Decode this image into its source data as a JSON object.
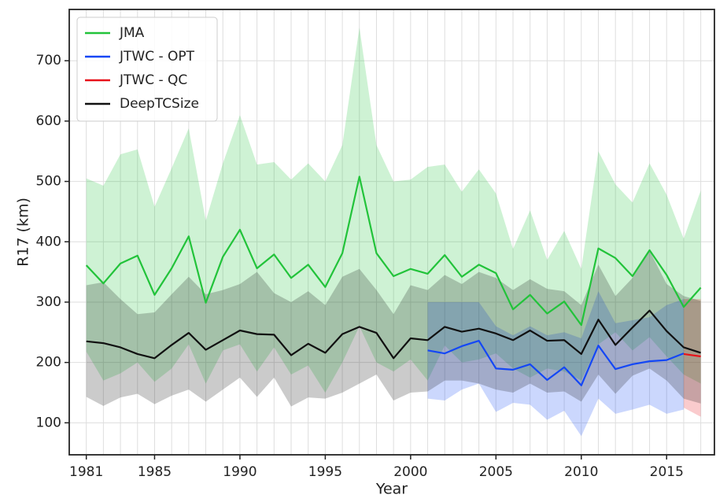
{
  "chart_data": {
    "type": "line",
    "x_label": "Year",
    "y_label": "R17 (km)",
    "x": [
      1981,
      1982,
      1983,
      1984,
      1985,
      1986,
      1987,
      1988,
      1989,
      1990,
      1991,
      1992,
      1993,
      1994,
      1995,
      1996,
      1997,
      1998,
      1999,
      2000,
      2001,
      2002,
      2003,
      2004,
      2005,
      2006,
      2007,
      2008,
      2009,
      2010,
      2011,
      2012,
      2013,
      2014,
      2015,
      2016,
      2017
    ],
    "xlim": [
      1980,
      2017.8
    ],
    "xticks": [
      1981,
      1985,
      1990,
      1995,
      2000,
      2005,
      2010,
      2015
    ],
    "ylim": [
      47,
      785
    ],
    "yticks": [
      100,
      200,
      300,
      400,
      500,
      600,
      700
    ],
    "grid": true,
    "legend": "upper left",
    "series": [
      {
        "name": "JMA",
        "color": "#22c33a",
        "values": [
          361,
          331,
          364,
          377,
          312,
          356,
          409,
          299,
          375,
          420,
          356,
          379,
          340,
          362,
          325,
          381,
          508,
          381,
          343,
          355,
          347,
          378,
          342,
          362,
          348,
          288,
          312,
          281,
          301,
          262,
          389,
          373,
          343,
          386,
          345,
          292,
          324
        ],
        "upper": [
          505,
          493,
          545,
          553,
          458,
          522,
          588,
          435,
          530,
          610,
          528,
          532,
          503,
          530,
          500,
          560,
          755,
          560,
          500,
          503,
          524,
          528,
          483,
          520,
          480,
          388,
          452,
          370,
          418,
          355,
          550,
          495,
          465,
          530,
          478,
          405,
          485
        ],
        "lower": [
          218,
          170,
          182,
          200,
          168,
          190,
          230,
          165,
          220,
          230,
          185,
          225,
          180,
          195,
          150,
          200,
          260,
          200,
          185,
          205,
          170,
          228,
          200,
          205,
          215,
          190,
          175,
          190,
          185,
          170,
          230,
          250,
          220,
          242,
          210,
          180,
          165
        ]
      },
      {
        "name": "JTWC - OPT",
        "color": "#1447f5",
        "values": [
          null,
          null,
          null,
          null,
          null,
          null,
          null,
          null,
          null,
          null,
          null,
          null,
          null,
          null,
          null,
          null,
          null,
          null,
          null,
          null,
          220,
          215,
          227,
          236,
          190,
          188,
          197,
          171,
          192,
          162,
          228,
          189,
          197,
          202,
          204,
          215,
          null
        ],
        "upper": [
          null,
          null,
          null,
          null,
          null,
          null,
          null,
          null,
          null,
          null,
          null,
          null,
          null,
          null,
          null,
          null,
          null,
          null,
          null,
          null,
          300,
          300,
          300,
          300,
          260,
          245,
          260,
          245,
          250,
          240,
          318,
          265,
          270,
          275,
          295,
          305,
          null
        ],
        "lower": [
          null,
          null,
          null,
          null,
          null,
          null,
          null,
          null,
          null,
          null,
          null,
          null,
          null,
          null,
          null,
          null,
          null,
          null,
          null,
          null,
          140,
          137,
          155,
          165,
          118,
          133,
          130,
          105,
          120,
          78,
          140,
          115,
          122,
          130,
          115,
          122,
          null
        ]
      },
      {
        "name": "JTWC - QC",
        "color": "#e8121a",
        "values": [
          null,
          null,
          null,
          null,
          null,
          null,
          null,
          null,
          null,
          null,
          null,
          null,
          null,
          null,
          null,
          null,
          null,
          null,
          null,
          null,
          null,
          null,
          null,
          null,
          null,
          null,
          null,
          null,
          null,
          null,
          null,
          null,
          null,
          null,
          null,
          214,
          210
        ],
        "upper": [
          null,
          null,
          null,
          null,
          null,
          null,
          null,
          null,
          null,
          null,
          null,
          null,
          null,
          null,
          null,
          null,
          null,
          null,
          null,
          null,
          null,
          null,
          null,
          null,
          null,
          null,
          null,
          null,
          null,
          null,
          null,
          null,
          null,
          null,
          null,
          305,
          305
        ],
        "lower": [
          null,
          null,
          null,
          null,
          null,
          null,
          null,
          null,
          null,
          null,
          null,
          null,
          null,
          null,
          null,
          null,
          null,
          null,
          null,
          null,
          null,
          null,
          null,
          null,
          null,
          null,
          null,
          null,
          null,
          null,
          null,
          null,
          null,
          null,
          null,
          125,
          110
        ]
      },
      {
        "name": "DeepTCSize",
        "color": "#111111",
        "values": [
          235,
          232,
          225,
          214,
          207,
          229,
          249,
          221,
          237,
          253,
          247,
          246,
          212,
          231,
          216,
          247,
          259,
          249,
          207,
          240,
          237,
          259,
          251,
          256,
          248,
          237,
          253,
          236,
          237,
          214,
          271,
          229,
          258,
          286,
          252,
          225,
          216
        ],
        "upper": [
          328,
          333,
          305,
          280,
          283,
          313,
          342,
          313,
          320,
          330,
          350,
          315,
          300,
          318,
          295,
          342,
          355,
          320,
          280,
          328,
          320,
          345,
          330,
          350,
          340,
          320,
          338,
          322,
          318,
          295,
          362,
          310,
          340,
          385,
          330,
          310,
          302
        ],
        "lower": [
          143,
          128,
          142,
          148,
          131,
          145,
          155,
          135,
          155,
          175,
          143,
          175,
          127,
          142,
          140,
          150,
          165,
          180,
          137,
          150,
          152,
          170,
          170,
          165,
          155,
          150,
          165,
          150,
          152,
          135,
          180,
          148,
          178,
          190,
          170,
          140,
          132
        ]
      }
    ]
  }
}
